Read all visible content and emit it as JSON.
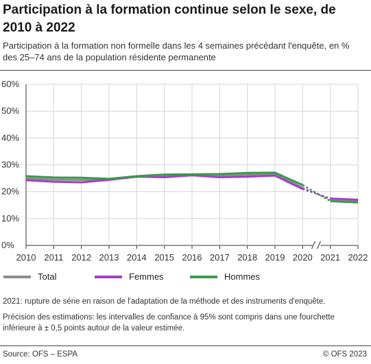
{
  "header": {
    "title": "Participation à la formation continue selon le sexe, de 2010 à 2022",
    "subtitle": "Participation à la formation non formelle dans les 4 semaines précédant l'enquête, en % des 25–74 ans de la population résidente permanente"
  },
  "chart_data": {
    "type": "line",
    "x": [
      2010,
      2011,
      2012,
      2013,
      2014,
      2015,
      2016,
      2017,
      2018,
      2019,
      2020,
      2021,
      2022
    ],
    "x_tick_labels": [
      "2010",
      "2011",
      "2012",
      "2013",
      "2014",
      "2015",
      "2016",
      "2017",
      "2018",
      "2019",
      "2020",
      "2021",
      "2022"
    ],
    "y_tick_labels": [
      "0%",
      "10%",
      "20%",
      "30%",
      "40%",
      "50%",
      "60%"
    ],
    "y_ticks": [
      0,
      10,
      20,
      30,
      40,
      50,
      60
    ],
    "ylim": [
      0,
      60
    ],
    "grid": true,
    "series_break": "2020 – 2021",
    "series": [
      {
        "name": "Total",
        "color": "#8c8c8c",
        "values": [
          25.0,
          24.5,
          24.4,
          24.6,
          25.7,
          25.9,
          26.2,
          26.0,
          26.3,
          26.6,
          21.5,
          17.0,
          16.6
        ]
      },
      {
        "name": "Femmes",
        "color": "#a040c8",
        "values": [
          24.3,
          23.7,
          23.5,
          24.4,
          25.6,
          25.4,
          26.1,
          25.4,
          25.6,
          26.0,
          21.0,
          17.5,
          17.0
        ]
      },
      {
        "name": "Hommes",
        "color": "#3a9a4a",
        "values": [
          25.8,
          25.3,
          25.2,
          24.8,
          25.8,
          26.4,
          26.5,
          26.6,
          27.0,
          27.1,
          22.5,
          16.5,
          16.0
        ]
      }
    ]
  },
  "notes": {
    "rupture": "2021: rupture de série en raison de l'adaptation de la méthode et des instruments d'enquête.",
    "precision": "Précision des estimations: les intervalles de confiance à 95% sont compris dans une fourchette inférieure à ± 0,5 points autour de la valeur estimée."
  },
  "footer": {
    "source": "Source: OFS – ESPA",
    "copyright": "© OFS 2023"
  }
}
